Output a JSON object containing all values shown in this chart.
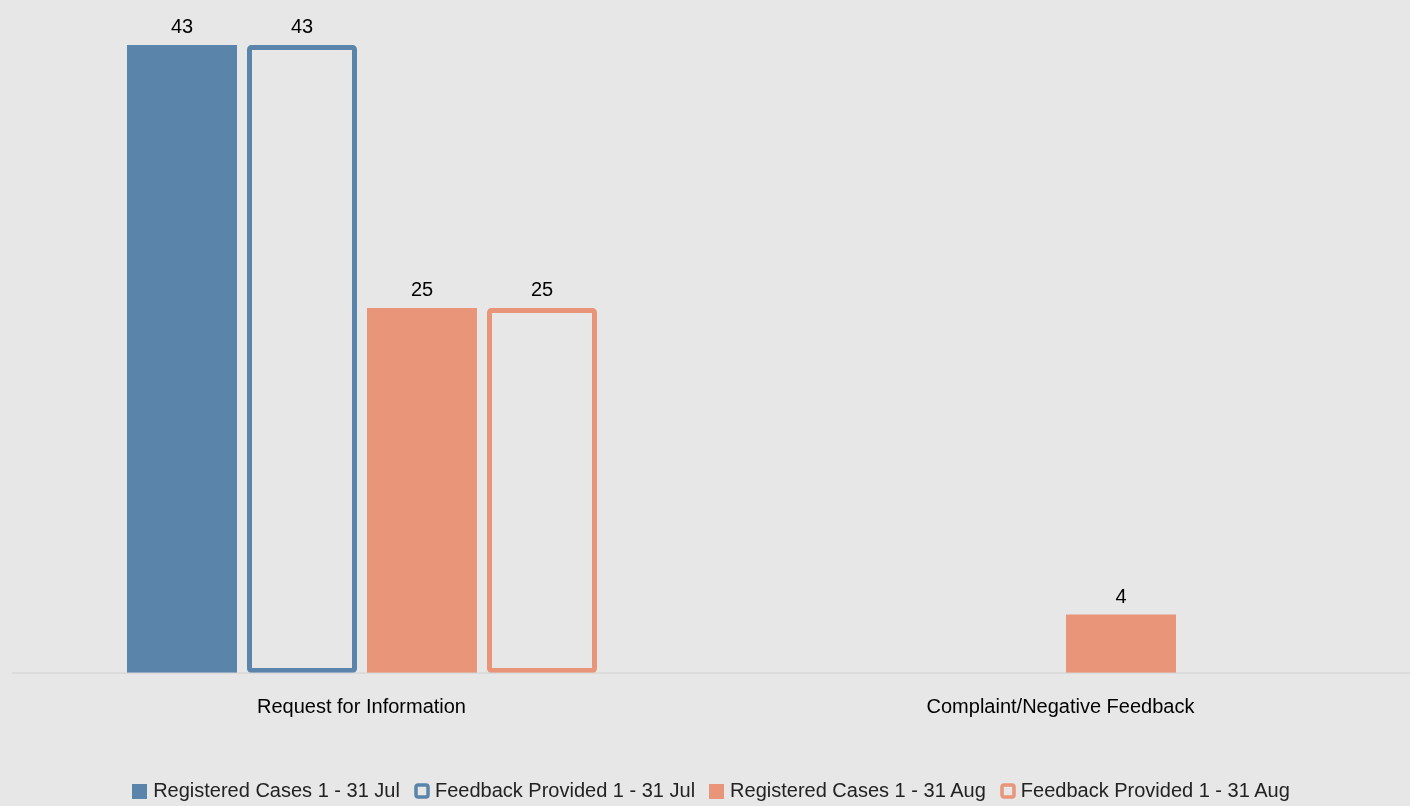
{
  "chart_data": {
    "type": "bar",
    "categories": [
      "Request for Information",
      "Complaint/Negative Feedback"
    ],
    "series": [
      {
        "name": "Registered Cases 1 - 31 Jul",
        "color": "#5b84ab",
        "values": [
          43,
          null
        ]
      },
      {
        "name": "Feedback Provided 1 - 31 Jul",
        "color": "#5b84ab",
        "values": [
          43,
          null
        ]
      },
      {
        "name": "Registered Cases 1 - 31 Aug",
        "color": "#e8957a",
        "values": [
          25,
          4
        ]
      },
      {
        "name": "Feedback Provided 1 - 31 Aug",
        "color": "#e8957a",
        "values": [
          25,
          null
        ]
      }
    ],
    "data_labels": true,
    "legend": "bottom",
    "grid": false
  }
}
